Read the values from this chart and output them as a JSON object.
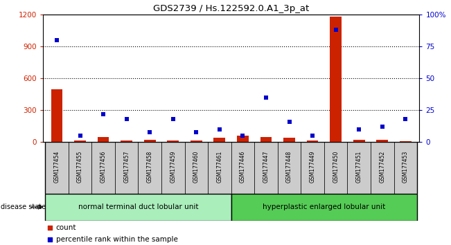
{
  "title": "GDS2739 / Hs.122592.0.A1_3p_at",
  "samples": [
    "GSM177454",
    "GSM177455",
    "GSM177456",
    "GSM177457",
    "GSM177458",
    "GSM177459",
    "GSM177460",
    "GSM177461",
    "GSM177446",
    "GSM177447",
    "GSM177448",
    "GSM177449",
    "GSM177450",
    "GSM177451",
    "GSM177452",
    "GSM177453"
  ],
  "counts": [
    500,
    15,
    50,
    15,
    20,
    15,
    15,
    40,
    60,
    50,
    40,
    15,
    1180,
    20,
    20,
    10
  ],
  "percentiles": [
    80,
    5,
    22,
    18,
    8,
    18,
    8,
    10,
    5,
    35,
    16,
    5,
    88,
    10,
    12,
    18
  ],
  "group1_label": "normal terminal duct lobular unit",
  "group2_label": "hyperplastic enlarged lobular unit",
  "group1_count": 8,
  "group2_count": 8,
  "ylim_left": [
    0,
    1200
  ],
  "ylim_right": [
    0,
    100
  ],
  "yticks_left": [
    0,
    300,
    600,
    900,
    1200
  ],
  "yticks_right": [
    0,
    25,
    50,
    75,
    100
  ],
  "ytick_labels_right": [
    "0",
    "25",
    "50",
    "75",
    "100%"
  ],
  "bar_color": "#cc2200",
  "dot_color": "#0000cc",
  "group1_bg": "#aaeebb",
  "group2_bg": "#55cc55",
  "label_bg": "#cccccc"
}
